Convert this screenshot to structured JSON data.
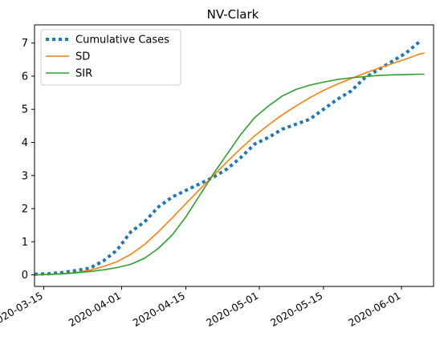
{
  "chart_data": {
    "type": "line",
    "title": "NV-Clark",
    "xlabel": "",
    "ylabel": "",
    "xlim": [
      "2020-03-13",
      "2020-06-08"
    ],
    "ylim": [
      -0.35,
      7.55
    ],
    "x_ticks": [
      "2020-03-15",
      "2020-04-01",
      "2020-04-15",
      "2020-05-01",
      "2020-05-15",
      "2020-06-01"
    ],
    "y_ticks": [
      0,
      1,
      2,
      3,
      4,
      5,
      6,
      7
    ],
    "grid": false,
    "legend": "top-left",
    "series": [
      {
        "name": "Cumulative Cases",
        "style": "dotted",
        "color": "#1f77b4",
        "points": [
          [
            "2020-03-13",
            0.02
          ],
          [
            "2020-03-16",
            0.03
          ],
          [
            "2020-03-19",
            0.07
          ],
          [
            "2020-03-22",
            0.13
          ],
          [
            "2020-03-25",
            0.2
          ],
          [
            "2020-03-28",
            0.42
          ],
          [
            "2020-03-31",
            0.75
          ],
          [
            "2020-04-03",
            1.3
          ],
          [
            "2020-04-06",
            1.6
          ],
          [
            "2020-04-09",
            2.05
          ],
          [
            "2020-04-12",
            2.35
          ],
          [
            "2020-04-15",
            2.55
          ],
          [
            "2020-04-18",
            2.75
          ],
          [
            "2020-04-21",
            2.95
          ],
          [
            "2020-04-24",
            3.2
          ],
          [
            "2020-04-27",
            3.55
          ],
          [
            "2020-04-30",
            3.95
          ],
          [
            "2020-05-03",
            4.15
          ],
          [
            "2020-05-06",
            4.4
          ],
          [
            "2020-05-09",
            4.55
          ],
          [
            "2020-05-12",
            4.7
          ],
          [
            "2020-05-15",
            5.0
          ],
          [
            "2020-05-18",
            5.3
          ],
          [
            "2020-05-21",
            5.55
          ],
          [
            "2020-05-24",
            5.95
          ],
          [
            "2020-05-27",
            6.2
          ],
          [
            "2020-05-30",
            6.45
          ],
          [
            "2020-06-02",
            6.7
          ],
          [
            "2020-06-05",
            7.05
          ]
        ]
      },
      {
        "name": "SD",
        "style": "solid",
        "color": "#ff7f0e",
        "points": [
          [
            "2020-03-13",
            0.0
          ],
          [
            "2020-03-16",
            0.01
          ],
          [
            "2020-03-19",
            0.03
          ],
          [
            "2020-03-22",
            0.07
          ],
          [
            "2020-03-25",
            0.14
          ],
          [
            "2020-03-28",
            0.25
          ],
          [
            "2020-03-31",
            0.4
          ],
          [
            "2020-04-03",
            0.62
          ],
          [
            "2020-04-06",
            0.92
          ],
          [
            "2020-04-09",
            1.3
          ],
          [
            "2020-04-12",
            1.72
          ],
          [
            "2020-04-15",
            2.15
          ],
          [
            "2020-04-18",
            2.58
          ],
          [
            "2020-04-21",
            3.0
          ],
          [
            "2020-04-24",
            3.42
          ],
          [
            "2020-04-27",
            3.82
          ],
          [
            "2020-04-30",
            4.2
          ],
          [
            "2020-05-03",
            4.53
          ],
          [
            "2020-05-06",
            4.83
          ],
          [
            "2020-05-09",
            5.1
          ],
          [
            "2020-05-12",
            5.35
          ],
          [
            "2020-05-15",
            5.57
          ],
          [
            "2020-05-18",
            5.76
          ],
          [
            "2020-05-21",
            5.93
          ],
          [
            "2020-05-24",
            6.09
          ],
          [
            "2020-05-27",
            6.24
          ],
          [
            "2020-05-30",
            6.38
          ],
          [
            "2020-06-02",
            6.52
          ],
          [
            "2020-06-05",
            6.67
          ],
          [
            "2020-06-06",
            6.7
          ]
        ]
      },
      {
        "name": "SIR",
        "style": "solid",
        "color": "#2ca02c",
        "points": [
          [
            "2020-03-13",
            0.0
          ],
          [
            "2020-03-16",
            0.01
          ],
          [
            "2020-03-19",
            0.03
          ],
          [
            "2020-03-22",
            0.06
          ],
          [
            "2020-03-25",
            0.1
          ],
          [
            "2020-03-28",
            0.15
          ],
          [
            "2020-03-31",
            0.22
          ],
          [
            "2020-04-03",
            0.32
          ],
          [
            "2020-04-06",
            0.5
          ],
          [
            "2020-04-09",
            0.8
          ],
          [
            "2020-04-12",
            1.2
          ],
          [
            "2020-04-15",
            1.75
          ],
          [
            "2020-04-18",
            2.4
          ],
          [
            "2020-04-21",
            3.05
          ],
          [
            "2020-04-24",
            3.65
          ],
          [
            "2020-04-27",
            4.25
          ],
          [
            "2020-04-30",
            4.75
          ],
          [
            "2020-05-03",
            5.1
          ],
          [
            "2020-05-06",
            5.4
          ],
          [
            "2020-05-09",
            5.6
          ],
          [
            "2020-05-12",
            5.73
          ],
          [
            "2020-05-15",
            5.82
          ],
          [
            "2020-05-18",
            5.9
          ],
          [
            "2020-05-21",
            5.95
          ],
          [
            "2020-05-24",
            5.99
          ],
          [
            "2020-05-27",
            6.02
          ],
          [
            "2020-05-30",
            6.04
          ],
          [
            "2020-06-02",
            6.05
          ],
          [
            "2020-06-05",
            6.06
          ],
          [
            "2020-06-06",
            6.06
          ]
        ]
      }
    ]
  }
}
